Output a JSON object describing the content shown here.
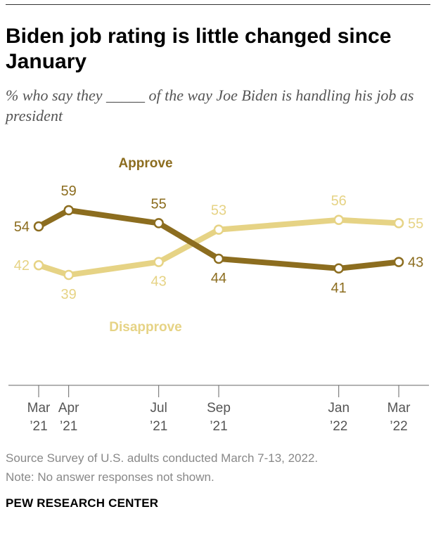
{
  "title": "Biden job rating is little changed since January",
  "subtitle": "% who say they _____ of the way Joe Biden is handling his job as president",
  "source": "Source Survey of U.S. adults conducted March 7-13, 2022.",
  "note": "Note: No answer responses not shown.",
  "brand": "PEW RESEARCH CENTER",
  "colors": {
    "approve": "#8c6d1f",
    "disapprove": "#e6d385",
    "axis": "#666666",
    "text": "#555555"
  },
  "chart_data": {
    "type": "line",
    "x": [
      "2021-03",
      "2021-04",
      "2021-07",
      "2021-09",
      "2022-01",
      "2022-03"
    ],
    "tick_labels": [
      [
        "Mar",
        "’21"
      ],
      [
        "Apr",
        "’21"
      ],
      [
        "Jul",
        "’21"
      ],
      [
        "Sep",
        "’21"
      ],
      [
        "Jan",
        "’22"
      ],
      [
        "Mar",
        "’22"
      ]
    ],
    "series": [
      {
        "name": "Approve",
        "color": "#8c6d1f",
        "values": [
          54,
          59,
          55,
          44,
          41,
          43
        ]
      },
      {
        "name": "Disapprove",
        "color": "#e6d385",
        "values": [
          42,
          39,
          43,
          53,
          56,
          55
        ]
      }
    ],
    "grid": false,
    "legend": "inline labels"
  }
}
